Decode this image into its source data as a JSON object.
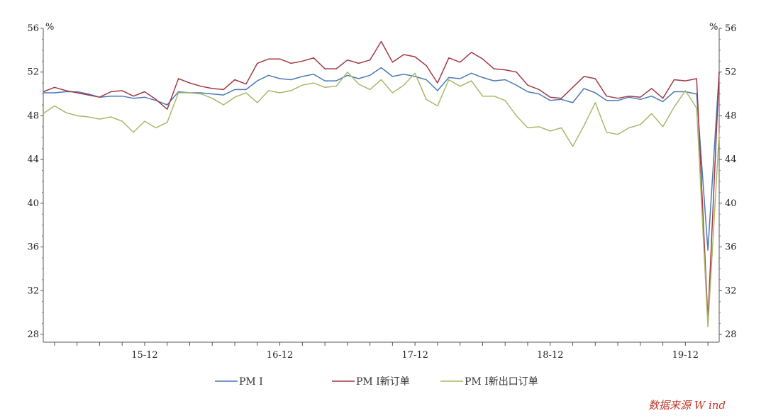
{
  "chart_data": {
    "type": "line",
    "title": "",
    "xlabel": "",
    "ylabel": "",
    "y_unit_left": "%",
    "y_unit_right": "%",
    "ylim": [
      28,
      56
    ],
    "yticks": [
      28,
      32,
      36,
      40,
      44,
      48,
      52,
      56
    ],
    "grid": false,
    "legend_placement": "bottom",
    "x_start": "2015-03",
    "x_end": "2020-03",
    "x_tick_labels": [
      "15-12",
      "16-12",
      "17-12",
      "18-12",
      "19-12"
    ],
    "x": [
      "2015-03",
      "2015-04",
      "2015-05",
      "2015-06",
      "2015-07",
      "2015-08",
      "2015-09",
      "2015-10",
      "2015-11",
      "2015-12",
      "2016-01",
      "2016-02",
      "2016-03",
      "2016-04",
      "2016-05",
      "2016-06",
      "2016-07",
      "2016-08",
      "2016-09",
      "2016-10",
      "2016-11",
      "2016-12",
      "2017-01",
      "2017-02",
      "2017-03",
      "2017-04",
      "2017-05",
      "2017-06",
      "2017-07",
      "2017-08",
      "2017-09",
      "2017-10",
      "2017-11",
      "2017-12",
      "2018-01",
      "2018-02",
      "2018-03",
      "2018-04",
      "2018-05",
      "2018-06",
      "2018-07",
      "2018-08",
      "2018-09",
      "2018-10",
      "2018-11",
      "2018-12",
      "2019-01",
      "2019-02",
      "2019-03",
      "2019-04",
      "2019-05",
      "2019-06",
      "2019-07",
      "2019-08",
      "2019-09",
      "2019-10",
      "2019-11",
      "2019-12",
      "2020-01",
      "2020-02",
      "2020-03"
    ],
    "series": [
      {
        "name": "PM I",
        "color": "#4a7ab5",
        "values": [
          50.1,
          50.1,
          50.2,
          50.2,
          50.0,
          49.7,
          49.8,
          49.8,
          49.6,
          49.7,
          49.4,
          49.0,
          50.2,
          50.1,
          50.1,
          50.0,
          49.9,
          50.4,
          50.4,
          51.2,
          51.7,
          51.4,
          51.3,
          51.6,
          51.8,
          51.2,
          51.2,
          51.7,
          51.4,
          51.7,
          52.4,
          51.6,
          51.8,
          51.6,
          51.3,
          50.3,
          51.5,
          51.4,
          51.9,
          51.5,
          51.2,
          51.3,
          50.8,
          50.2,
          50.0,
          49.4,
          49.5,
          49.2,
          50.5,
          50.1,
          49.4,
          49.4,
          49.7,
          49.5,
          49.8,
          49.3,
          50.2,
          50.2,
          50.0,
          35.7,
          52.0
        ]
      },
      {
        "name": "PM I新订单",
        "color": "#a03a45",
        "values": [
          50.2,
          50.6,
          50.3,
          50.1,
          49.9,
          49.7,
          50.2,
          50.3,
          49.8,
          50.2,
          49.5,
          48.6,
          51.4,
          51.0,
          50.7,
          50.5,
          50.4,
          51.3,
          50.9,
          52.8,
          53.2,
          53.2,
          52.8,
          53.0,
          53.3,
          52.3,
          52.3,
          53.1,
          52.8,
          53.1,
          54.8,
          52.9,
          53.6,
          53.4,
          52.6,
          51.0,
          53.3,
          52.9,
          53.8,
          53.2,
          52.3,
          52.2,
          52.0,
          50.8,
          50.4,
          49.7,
          49.6,
          50.6,
          51.6,
          51.4,
          49.8,
          49.6,
          49.8,
          49.7,
          50.5,
          49.6,
          51.3,
          51.2,
          51.4,
          29.3,
          52.0
        ]
      },
      {
        "name": "PM I新出口订单",
        "color": "#a8b86a",
        "values": [
          48.2,
          48.9,
          48.3,
          48.0,
          47.9,
          47.7,
          47.9,
          47.5,
          46.5,
          47.5,
          46.9,
          47.4,
          50.1,
          50.1,
          50.0,
          49.6,
          49.0,
          49.7,
          50.1,
          49.2,
          50.3,
          50.1,
          50.3,
          50.8,
          51.0,
          50.6,
          50.7,
          52.0,
          50.9,
          50.4,
          51.3,
          50.1,
          50.8,
          51.9,
          49.5,
          48.9,
          51.3,
          50.7,
          51.2,
          49.8,
          49.8,
          49.4,
          48.0,
          46.9,
          47.0,
          46.6,
          46.9,
          45.2,
          47.1,
          49.2,
          46.5,
          46.3,
          46.9,
          47.2,
          48.2,
          47.0,
          48.8,
          50.3,
          48.7,
          28.7,
          46.4
        ]
      }
    ],
    "source": "数据来源  W ind"
  }
}
